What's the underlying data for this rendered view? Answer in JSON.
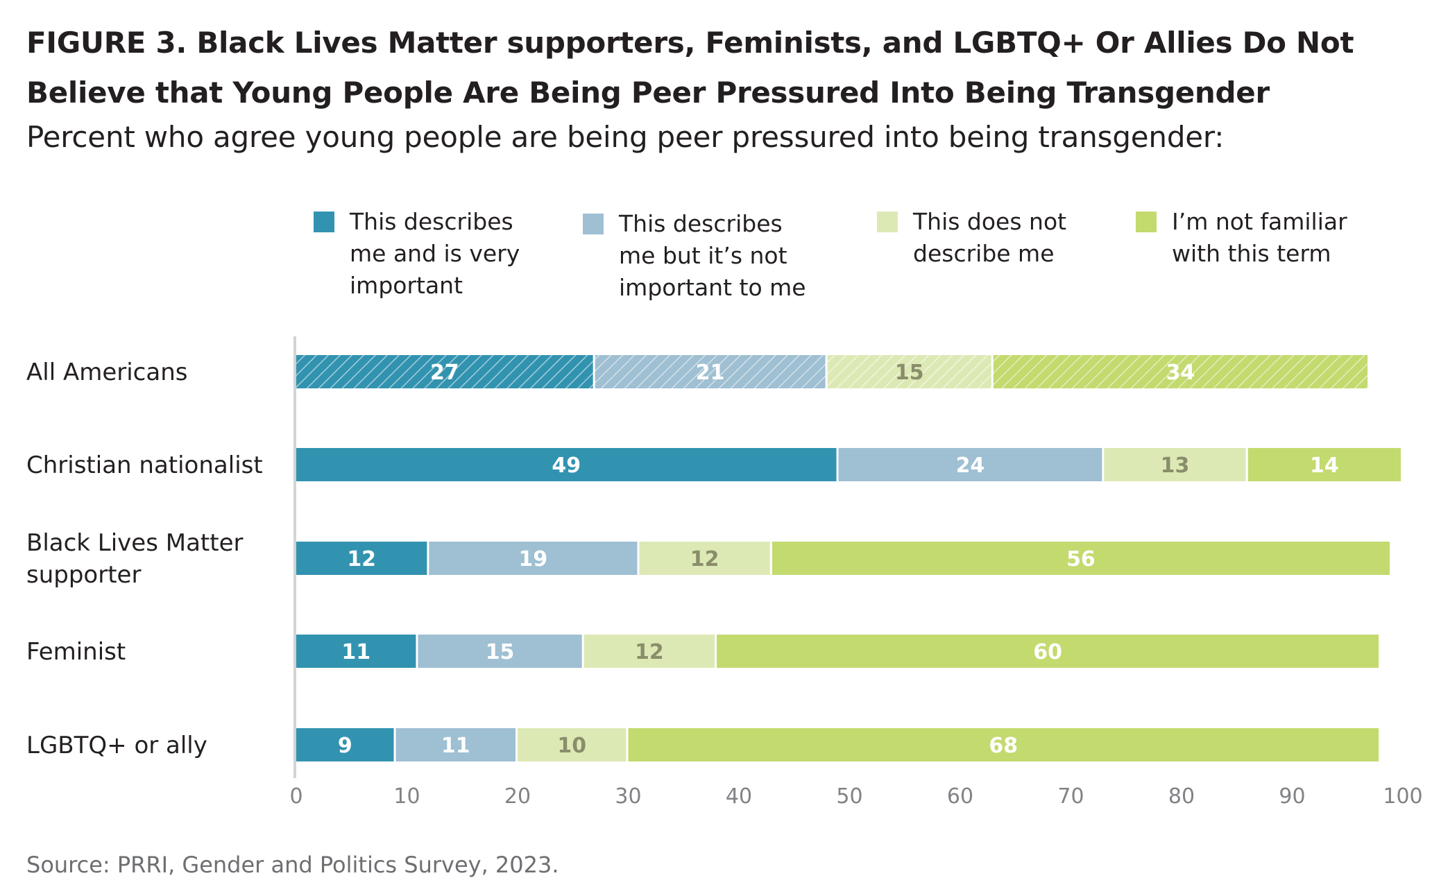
{
  "figure": {
    "title": "FIGURE 3.  Black Lives Matter supporters, Feminists, and LGBTQ+ Or Allies Do Not Believe that Young People Are Being Peer Pressured Into Being Transgender",
    "subtitle": "Percent who agree young people are being peer pressured into being transgender:",
    "source": "Source: PRRI, Gender and Politics Survey, 2023."
  },
  "chart_data": {
    "type": "bar",
    "orientation": "horizontal",
    "stacked": true,
    "categories": [
      "All Americans",
      "Christian nationalist",
      "Black Lives Matter supporter",
      "Feminist",
      "LGBTQ+ or ally"
    ],
    "category_lines": [
      [
        "All Americans"
      ],
      [
        "Christian nationalist"
      ],
      [
        "Black Lives Matter",
        "supporter"
      ],
      [
        "Feminist"
      ],
      [
        "LGBTQ+ or ally"
      ]
    ],
    "series": [
      {
        "name": "This describes me and is very important",
        "legend_lines": [
          "This describes",
          "me and is very",
          "important"
        ],
        "color": "#3293b0",
        "label_color": "#ffffff",
        "values": [
          27,
          49,
          12,
          11,
          9
        ]
      },
      {
        "name": "This describes me but it’s not important to me",
        "legend_lines": [
          "This describes",
          "me but it’s not",
          "important to me"
        ],
        "color": "#9fbfd2",
        "label_color": "#ffffff",
        "values": [
          21,
          24,
          19,
          15,
          11
        ]
      },
      {
        "name": "This does not describe me",
        "legend_lines": [
          "This does not",
          "describe me"
        ],
        "color": "#dde9b5",
        "label_color": "#8a8d6a",
        "values": [
          15,
          13,
          12,
          12,
          10
        ]
      },
      {
        "name": "I’m not familiar with this term",
        "legend_lines": [
          "I’m not familiar",
          "with this term"
        ],
        "color": "#c3da6e",
        "label_color": "#ffffff",
        "values": [
          34,
          14,
          56,
          60,
          68
        ]
      }
    ],
    "hatched_categories": [
      "All Americans"
    ],
    "xlim": [
      0,
      100
    ],
    "xticks": [
      0,
      10,
      20,
      30,
      40,
      50,
      60,
      70,
      80,
      90,
      100
    ],
    "grid": false,
    "legend_position": "top"
  }
}
